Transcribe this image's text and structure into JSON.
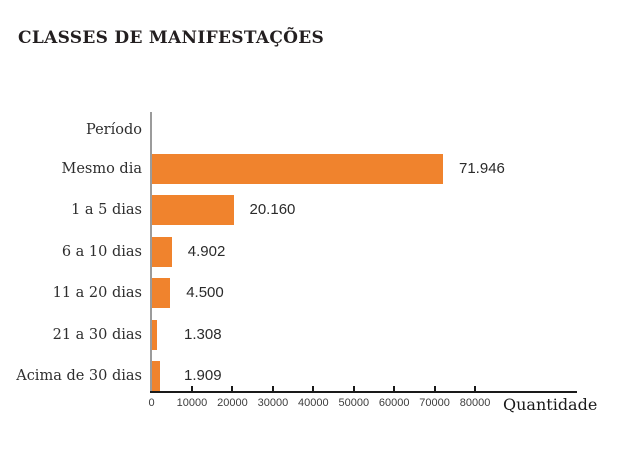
{
  "title": "CLASSES DE MANIFESTAÇÕES",
  "colors": {
    "bar": "#F0832D",
    "title": "#231F20",
    "category_label": "#2E2E2E",
    "value_label": "#2B2B2B",
    "x_axis": "#1A1A1A",
    "y_axis": "#9B9B9B",
    "background": "#FFFFFF"
  },
  "chart_data": {
    "type": "bar",
    "orientation": "horizontal",
    "title": "CLASSES DE MANIFESTAÇÕES",
    "ylabel": "Período",
    "xlabel": "Quantidade",
    "categories": [
      "Mesmo dia",
      "1 a 5 dias",
      "6 a 10 dias",
      "11 a 20 dias",
      "21 a 30 dias",
      "Acima de 30 dias"
    ],
    "values": [
      71946,
      20160,
      4902,
      4500,
      1308,
      1909
    ],
    "value_labels": [
      "71.946",
      "20.160",
      "4.902",
      "4.500",
      "1.308",
      "1.909"
    ],
    "x_ticks": [
      0,
      10000,
      20000,
      30000,
      40000,
      50000,
      60000,
      70000,
      80000
    ],
    "xlim": [
      0,
      105000
    ],
    "grid": false,
    "legend": false,
    "bar_color": "#F0832D"
  }
}
